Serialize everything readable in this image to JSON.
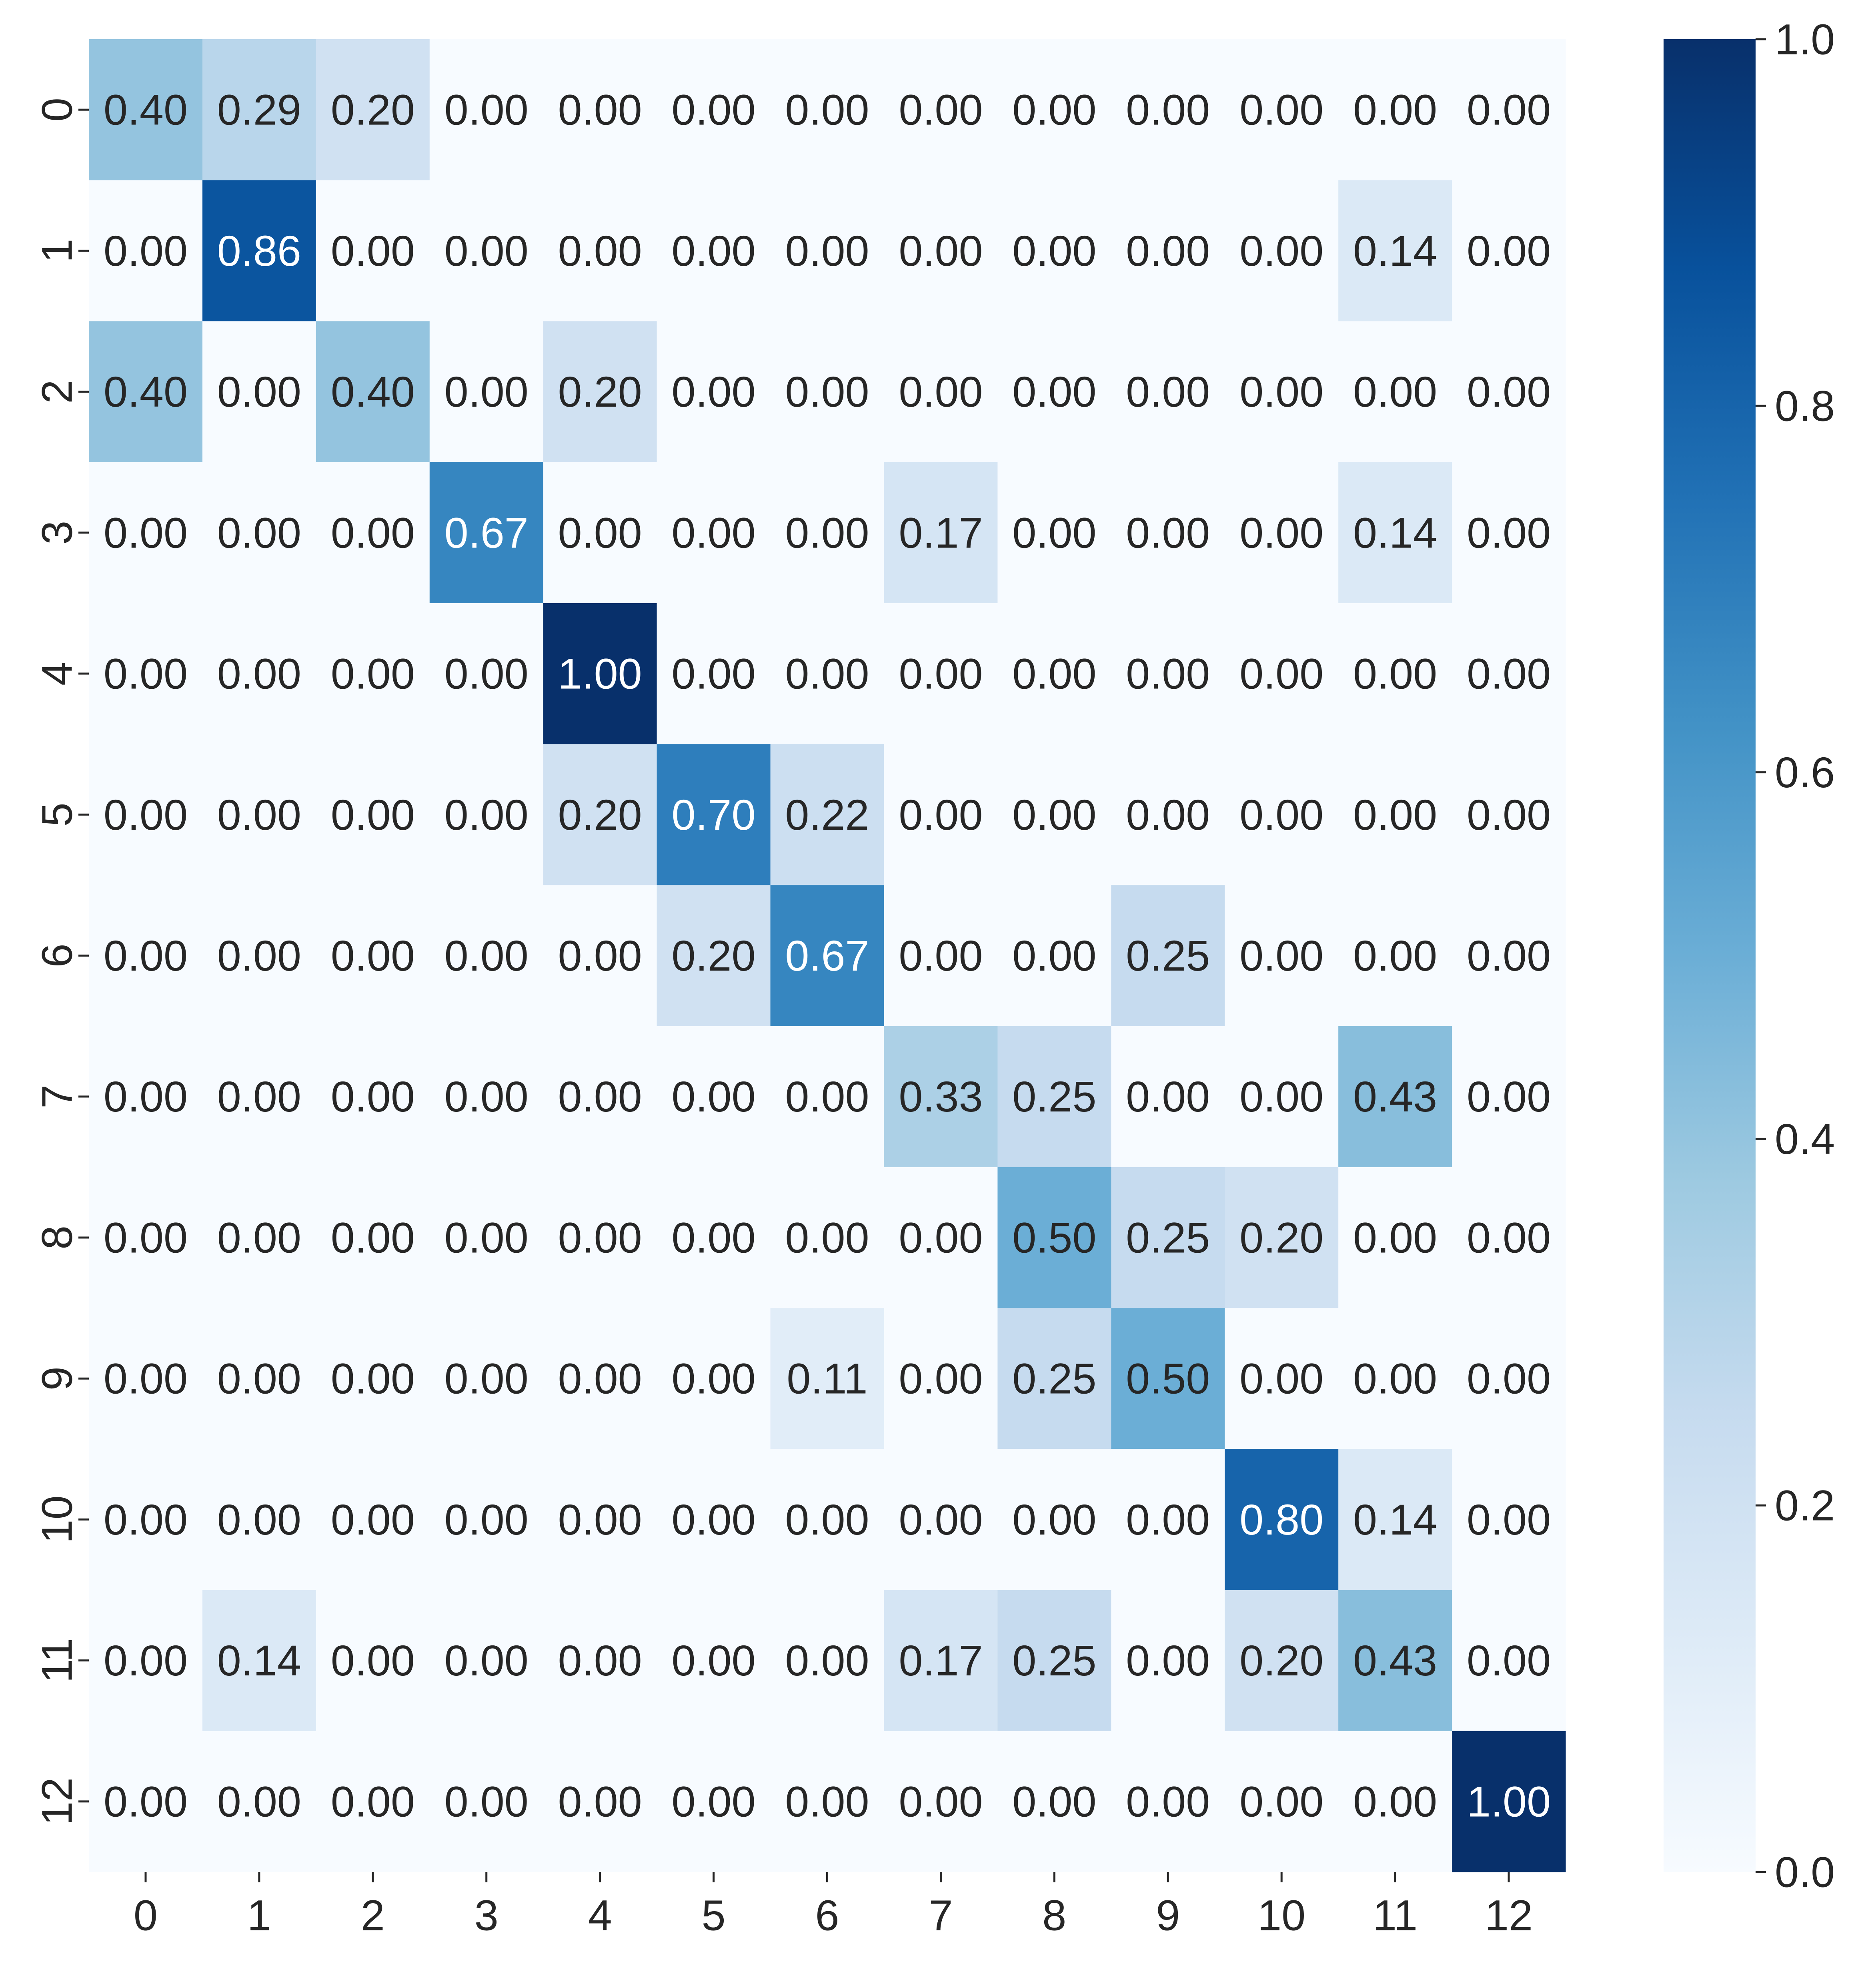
{
  "chart_data": {
    "type": "heatmap",
    "title": "",
    "xlabel": "",
    "ylabel": "",
    "x_tick_labels": [
      "0",
      "1",
      "2",
      "3",
      "4",
      "5",
      "6",
      "7",
      "8",
      "9",
      "10",
      "11",
      "12"
    ],
    "y_tick_labels": [
      "0",
      "1",
      "2",
      "3",
      "4",
      "5",
      "6",
      "7",
      "8",
      "9",
      "10",
      "11",
      "12"
    ],
    "values": [
      [
        0.4,
        0.29,
        0.2,
        0.0,
        0.0,
        0.0,
        0.0,
        0.0,
        0.0,
        0.0,
        0.0,
        0.0,
        0.0
      ],
      [
        0.0,
        0.86,
        0.0,
        0.0,
        0.0,
        0.0,
        0.0,
        0.0,
        0.0,
        0.0,
        0.0,
        0.14,
        0.0
      ],
      [
        0.4,
        0.0,
        0.4,
        0.0,
        0.2,
        0.0,
        0.0,
        0.0,
        0.0,
        0.0,
        0.0,
        0.0,
        0.0
      ],
      [
        0.0,
        0.0,
        0.0,
        0.67,
        0.0,
        0.0,
        0.0,
        0.17,
        0.0,
        0.0,
        0.0,
        0.14,
        0.0
      ],
      [
        0.0,
        0.0,
        0.0,
        0.0,
        1.0,
        0.0,
        0.0,
        0.0,
        0.0,
        0.0,
        0.0,
        0.0,
        0.0
      ],
      [
        0.0,
        0.0,
        0.0,
        0.0,
        0.2,
        0.7,
        0.22,
        0.0,
        0.0,
        0.0,
        0.0,
        0.0,
        0.0
      ],
      [
        0.0,
        0.0,
        0.0,
        0.0,
        0.0,
        0.2,
        0.67,
        0.0,
        0.0,
        0.25,
        0.0,
        0.0,
        0.0
      ],
      [
        0.0,
        0.0,
        0.0,
        0.0,
        0.0,
        0.0,
        0.0,
        0.33,
        0.25,
        0.0,
        0.0,
        0.43,
        0.0
      ],
      [
        0.0,
        0.0,
        0.0,
        0.0,
        0.0,
        0.0,
        0.0,
        0.0,
        0.5,
        0.25,
        0.2,
        0.0,
        0.0
      ],
      [
        0.0,
        0.0,
        0.0,
        0.0,
        0.0,
        0.0,
        0.11,
        0.0,
        0.25,
        0.5,
        0.0,
        0.0,
        0.0
      ],
      [
        0.0,
        0.0,
        0.0,
        0.0,
        0.0,
        0.0,
        0.0,
        0.0,
        0.0,
        0.0,
        0.8,
        0.14,
        0.0
      ],
      [
        0.0,
        0.14,
        0.0,
        0.0,
        0.0,
        0.0,
        0.0,
        0.17,
        0.25,
        0.0,
        0.2,
        0.43,
        0.0
      ],
      [
        0.0,
        0.0,
        0.0,
        0.0,
        0.0,
        0.0,
        0.0,
        0.0,
        0.0,
        0.0,
        0.0,
        0.0,
        1.0
      ]
    ],
    "value_format": "0.00",
    "value_range": [
      0.0,
      1.0
    ],
    "colormap": "Blues",
    "colormap_stops": [
      "#f7fbff",
      "#deebf7",
      "#c6dbef",
      "#9ecae1",
      "#6baed6",
      "#4292c6",
      "#2171b5",
      "#08519c",
      "#08306b"
    ],
    "colorbar": {
      "position": "right",
      "ticks": [
        0.0,
        0.2,
        0.4,
        0.6,
        0.8,
        1.0
      ],
      "tick_labels": [
        "0.0",
        "0.2",
        "0.4",
        "0.6",
        "0.8",
        "1.0"
      ]
    },
    "grid": false,
    "legend": "none"
  }
}
